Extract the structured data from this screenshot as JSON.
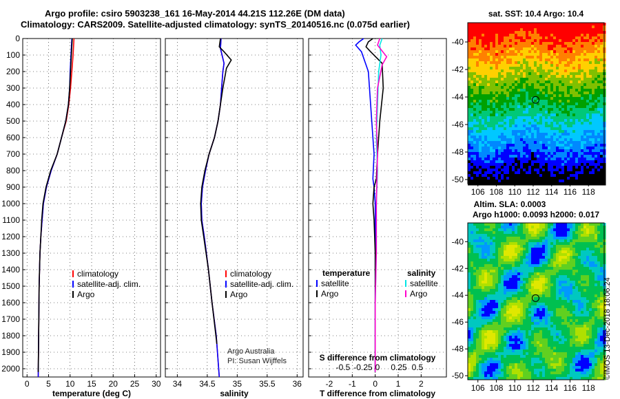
{
  "header": {
    "title_line1": "Argo profile: csiro 5903238_161 16-May-2014 44.21S 112.26E (DM data)",
    "title_line2": "Climatology: CARS2009. Satellite-adjusted climatology: synTS_20140516.nc (0.075d earlier)"
  },
  "credits": {
    "line1": "Argo Australia",
    "line2": "PI: Susan Wijffels",
    "imos": "©IMOS 13-Dec-2018 18:06:24"
  },
  "colors": {
    "climatology": "#ff0000",
    "satellite": "#0000ff",
    "argo": "#000000",
    "sal_satellite": "#00e5e5",
    "sal_argo": "#ff00cc"
  },
  "chart_data": [
    {
      "type": "line",
      "xlabel": "temperature (deg C)",
      "xlim": [
        -1,
        31
      ],
      "xticks": [
        "0",
        "5",
        "10",
        "15",
        "20",
        "25",
        "30"
      ],
      "ylim": [
        0,
        2050
      ],
      "yticks": [
        "0",
        "100",
        "200",
        "300",
        "400",
        "500",
        "600",
        "700",
        "800",
        "900",
        "1000",
        "1100",
        "1200",
        "1300",
        "1400",
        "1500",
        "1600",
        "1700",
        "1800",
        "1900",
        "2000"
      ],
      "legend": [
        "climatology",
        "satellite-adj. clim.",
        "Argo"
      ],
      "series": [
        {
          "name": "climatology",
          "x": [
            10.9,
            10.7,
            10.4,
            10.1,
            9.7,
            9.1,
            8.0,
            7.0,
            5.6,
            4.5,
            3.8,
            3.5,
            3.2,
            3.0,
            2.8,
            2.7,
            2.6
          ],
          "y": [
            0,
            100,
            200,
            300,
            400,
            500,
            600,
            700,
            800,
            900,
            1000,
            1100,
            1200,
            1300,
            1500,
            1800,
            2050
          ]
        },
        {
          "name": "satellite-adj. clim.",
          "x": [
            10.4,
            10.2,
            10.0,
            9.9,
            9.6,
            9.0,
            8.0,
            7.0,
            5.6,
            4.5,
            3.8,
            3.5,
            3.2,
            3.0,
            2.8,
            2.7,
            2.6
          ],
          "y": [
            0,
            100,
            200,
            300,
            400,
            500,
            600,
            700,
            800,
            900,
            1000,
            1100,
            1200,
            1300,
            1500,
            1800,
            2050
          ]
        },
        {
          "name": "Argo",
          "x": [
            10.5,
            10.3,
            10.1,
            9.9,
            9.6,
            9.0,
            8.0,
            7.0,
            5.5,
            4.4,
            3.7,
            3.4,
            3.2,
            3.0,
            2.8,
            2.7,
            2.6
          ],
          "y": [
            0,
            100,
            200,
            300,
            400,
            500,
            600,
            700,
            800,
            900,
            1000,
            1100,
            1200,
            1300,
            1500,
            1800,
            2020
          ]
        }
      ]
    },
    {
      "type": "line",
      "xlabel": "salinity",
      "xlim": [
        33.8,
        36.1
      ],
      "xticks": [
        "34",
        "34.5",
        "35",
        "35.5",
        "36"
      ],
      "ylim": [
        0,
        2050
      ],
      "legend": [
        "climatology",
        "satellite-adj. clim.",
        "Argo"
      ],
      "series": [
        {
          "name": "climatology",
          "x": [
            34.73,
            34.72,
            34.78,
            34.76,
            34.74,
            34.72,
            34.68,
            34.62,
            34.53,
            34.47,
            34.42,
            34.4,
            34.41,
            34.45,
            34.52,
            34.58,
            34.65,
            34.7
          ],
          "y": [
            0,
            60,
            150,
            200,
            300,
            400,
            500,
            600,
            700,
            800,
            900,
            1000,
            1100,
            1200,
            1400,
            1600,
            1800,
            2050
          ]
        },
        {
          "name": "satellite-adj. clim.",
          "x": [
            34.73,
            34.72,
            34.78,
            34.76,
            34.74,
            34.72,
            34.68,
            34.62,
            34.53,
            34.47,
            34.42,
            34.4,
            34.41,
            34.45,
            34.52,
            34.58,
            34.65,
            34.7
          ],
          "y": [
            0,
            60,
            150,
            200,
            300,
            400,
            500,
            600,
            700,
            800,
            900,
            1000,
            1100,
            1200,
            1400,
            1600,
            1800,
            2050
          ]
        },
        {
          "name": "Argo",
          "x": [
            34.72,
            34.7,
            34.78,
            34.9,
            34.82,
            34.8,
            34.76,
            34.72,
            34.68,
            34.62,
            34.53,
            34.46,
            34.41,
            34.39,
            34.4,
            34.44,
            34.52,
            34.58,
            34.66
          ],
          "y": [
            0,
            50,
            80,
            130,
            180,
            220,
            300,
            400,
            500,
            600,
            700,
            800,
            900,
            1000,
            1100,
            1200,
            1400,
            1600,
            1850
          ]
        }
      ]
    },
    {
      "type": "line",
      "xlabel": "T difference from climatology",
      "xlim": [
        -2.9,
        3.1
      ],
      "xticks": [
        "-2",
        "-1",
        "0",
        "1",
        "2"
      ],
      "secondary_title": "S difference from climatology",
      "secondary_ticks": [
        "-0.5",
        "-0.25",
        "0",
        "0.25",
        "0.5"
      ],
      "ylim": [
        0,
        2050
      ],
      "legend_left_title": "temperature",
      "legend_left": [
        "satellite",
        "Argo"
      ],
      "legend_right_title": "salinity",
      "legend_right": [
        "satellite",
        "Argo"
      ],
      "series": [
        {
          "name": "satellite",
          "x": [
            -0.5,
            -0.7,
            -0.85,
            -0.6,
            -0.3,
            -0.2,
            -0.1,
            -0.05,
            -0.1,
            -0.05,
            0,
            0,
            0,
            0,
            0
          ],
          "y": [
            0,
            20,
            40,
            80,
            200,
            400,
            600,
            700,
            850,
            900,
            1000,
            1200,
            1500,
            1800,
            2020
          ]
        },
        {
          "name": "Argo",
          "x": [
            -0.1,
            -0.3,
            -0.4,
            -0.2,
            0.3,
            0.35,
            0.2,
            0.1,
            0.05,
            -0.05,
            -0.1,
            -0.05,
            0,
            0,
            0
          ],
          "y": [
            0,
            20,
            50,
            80,
            150,
            300,
            500,
            700,
            850,
            900,
            1000,
            1100,
            1300,
            1600,
            2020
          ]
        },
        {
          "name": "satellite",
          "x": [
            0.3,
            0.2,
            0.25,
            0.15,
            0.1,
            0.05,
            0.1,
            0.05,
            0.05,
            0,
            0
          ],
          "y": [
            0,
            40,
            100,
            200,
            400,
            600,
            800,
            1000,
            1300,
            1600,
            2020
          ]
        },
        {
          "name": "Argo",
          "x": [
            0.2,
            0.1,
            0.5,
            0.3,
            0.1,
            0.05,
            0.1,
            0.05,
            0.05,
            0,
            0
          ],
          "y": [
            0,
            40,
            110,
            160,
            300,
            500,
            700,
            1000,
            1300,
            1600,
            2020
          ]
        }
      ]
    },
    {
      "type": "heatmap",
      "title": "sat. SST: 10.4 Argo: 10.4",
      "xticks": [
        "106",
        "108",
        "110",
        "112",
        "114",
        "116",
        "118"
      ],
      "yticks": [
        "-40",
        "-42",
        "-44",
        "-46",
        "-48",
        "-50"
      ],
      "xlim": [
        104.9,
        119.7
      ],
      "ylim": [
        -50.3,
        -38.6
      ],
      "marker": {
        "lon": 112.26,
        "lat": -44.21
      }
    },
    {
      "type": "heatmap",
      "title": "Altim. SLA: 0.0003",
      "subtitle": "Argo h1000: 0.0093 h2000: 0.017",
      "xticks": [
        "106",
        "108",
        "110",
        "112",
        "114",
        "116",
        "118"
      ],
      "yticks": [
        "-40",
        "-42",
        "-44",
        "-46",
        "-48",
        "-50"
      ],
      "xlim": [
        104.9,
        119.7
      ],
      "ylim": [
        -50.3,
        -38.6
      ],
      "marker": {
        "lon": 112.26,
        "lat": -44.21
      }
    }
  ]
}
